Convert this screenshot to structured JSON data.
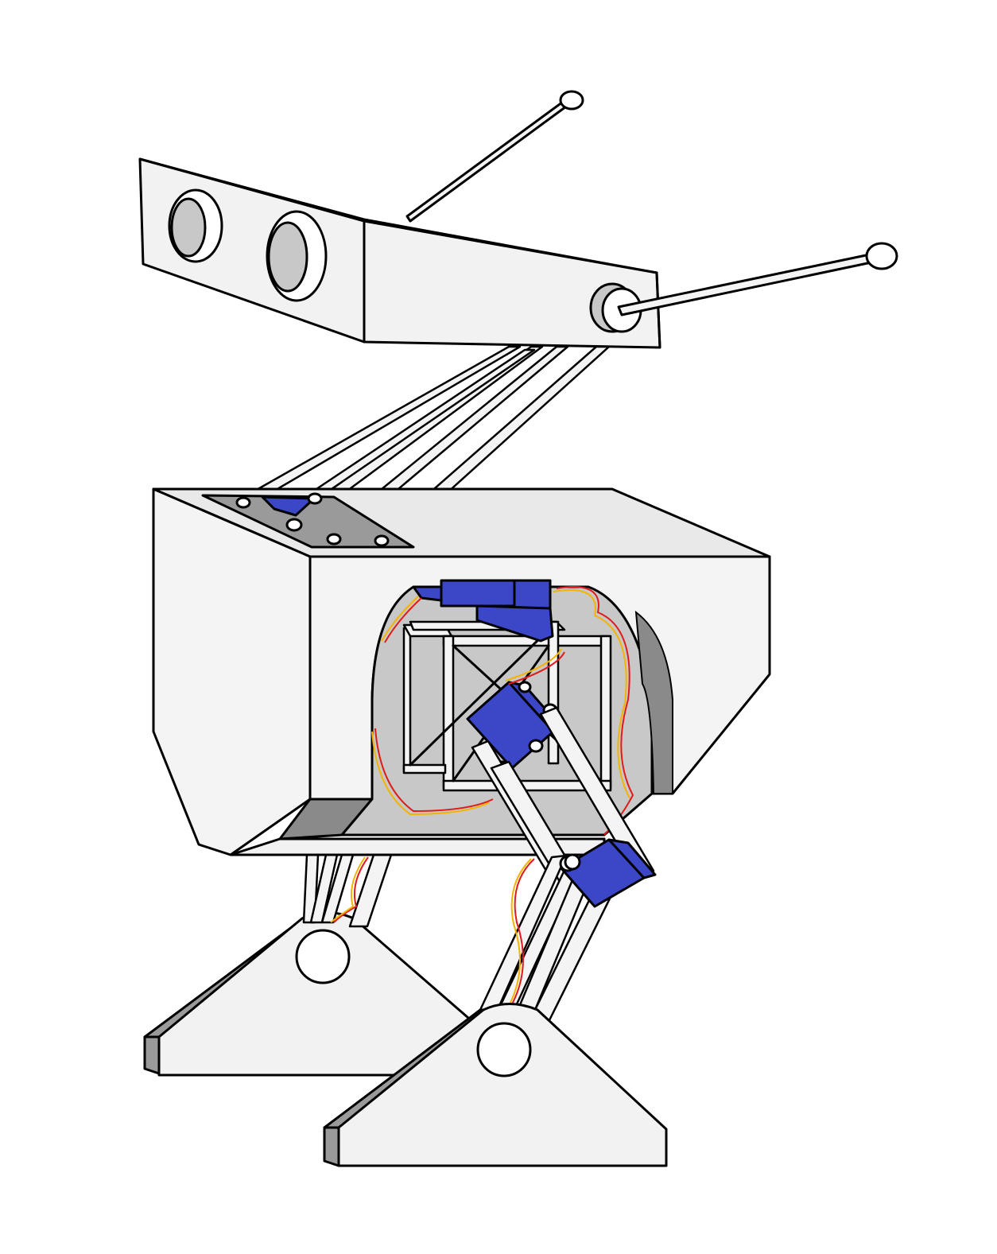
{
  "colors": {
    "background": "#ffffff",
    "panel": "#f2f2f2",
    "panel_shadow": "#c8c8c8",
    "dark_shadow": "#8a8a8a",
    "servo": "#3c47c8",
    "wire_red": "#e01b1b",
    "wire_yellow": "#f2b400",
    "outline": "#000000"
  },
  "parts": [
    "head",
    "sensor-eye",
    "antenna",
    "neck-rods",
    "body",
    "body-cavity",
    "frame-cube",
    "servo",
    "wiring",
    "leg-rods",
    "foot"
  ]
}
